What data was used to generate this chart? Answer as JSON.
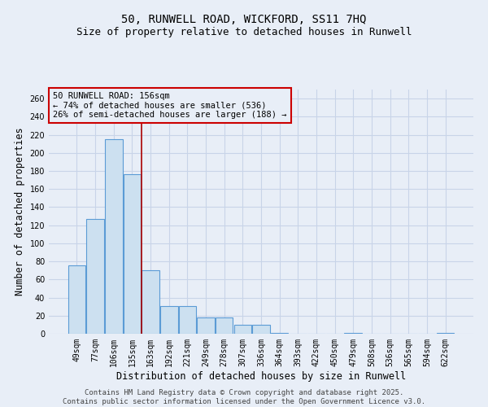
{
  "title1": "50, RUNWELL ROAD, WICKFORD, SS11 7HQ",
  "title2": "Size of property relative to detached houses in Runwell",
  "xlabel": "Distribution of detached houses by size in Runwell",
  "ylabel": "Number of detached properties",
  "categories": [
    "49sqm",
    "77sqm",
    "106sqm",
    "135sqm",
    "163sqm",
    "192sqm",
    "221sqm",
    "249sqm",
    "278sqm",
    "307sqm",
    "336sqm",
    "364sqm",
    "393sqm",
    "422sqm",
    "450sqm",
    "479sqm",
    "508sqm",
    "536sqm",
    "565sqm",
    "594sqm",
    "622sqm"
  ],
  "values": [
    76,
    127,
    215,
    176,
    70,
    31,
    31,
    18,
    18,
    10,
    10,
    1,
    0,
    0,
    0,
    1,
    0,
    0,
    0,
    0,
    1
  ],
  "bar_color": "#cce0f0",
  "bar_edge_color": "#5b9bd5",
  "vline_color": "#aa0000",
  "vline_x": 3.5,
  "annotation_title": "50 RUNWELL ROAD: 156sqm",
  "annotation_line1": "← 74% of detached houses are smaller (536)",
  "annotation_line2": "26% of semi-detached houses are larger (188) →",
  "annotation_box_color": "#cc0000",
  "background_color": "#e8eef7",
  "grid_color": "#c8d4e8",
  "ylim": [
    0,
    270
  ],
  "yticks": [
    0,
    20,
    40,
    60,
    80,
    100,
    120,
    140,
    160,
    180,
    200,
    220,
    240,
    260
  ],
  "footer1": "Contains HM Land Registry data © Crown copyright and database right 2025.",
  "footer2": "Contains public sector information licensed under the Open Government Licence v3.0.",
  "title_fontsize": 10,
  "subtitle_fontsize": 9,
  "axis_label_fontsize": 8.5,
  "tick_fontsize": 7,
  "annotation_fontsize": 7.5,
  "footer_fontsize": 6.5
}
